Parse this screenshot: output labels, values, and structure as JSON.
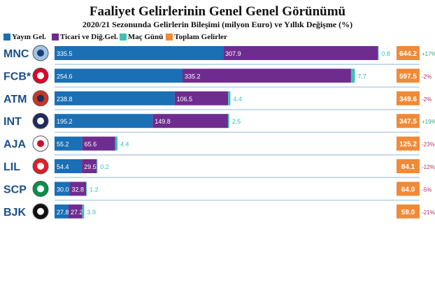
{
  "chart_data": {
    "type": "bar",
    "title": "Faaliyet Gelirlerinin Genel Genel Görünümü",
    "subtitle": "2020/21 Sezonunda Gelirlerin Bileşimi (milyon Euro) ve Yıllık Değişme  (%)",
    "stacked": true,
    "orientation": "horizontal",
    "categories": [
      "MNC",
      "FCB*",
      "ATM",
      "INT",
      "AJA",
      "LIL",
      "SCP",
      "BJK"
    ],
    "series": [
      {
        "name": "Yayın Gel.",
        "color": "#1a6fb5",
        "values": [
          335.5,
          254.6,
          238.8,
          195.2,
          55.2,
          54.4,
          30.0,
          27.8
        ]
      },
      {
        "name": "Ticari ve Diğ.Gel.",
        "color": "#6f2c8f",
        "values": [
          307.9,
          335.2,
          106.5,
          149.8,
          65.6,
          29.5,
          32.8,
          27.2
        ]
      },
      {
        "name": "Maç Günü",
        "color": "#3cc1b4",
        "values": [
          0.8,
          7.7,
          4.4,
          2.5,
          4.4,
          0.2,
          1.2,
          3.9
        ]
      }
    ],
    "totals": {
      "name": "Toplam Gelirler",
      "color": "#f08a36",
      "values": [
        "644.2",
        "597.5",
        "349.6",
        "347.5",
        "125.2",
        "84.1",
        "64.0",
        "59.0"
      ]
    },
    "value_labels": [
      [
        "335.5",
        "307.9",
        "0.8"
      ],
      [
        "254.6",
        "335.2",
        "7.7"
      ],
      [
        "238.8",
        "106.5",
        "4.4"
      ],
      [
        "195.2",
        "149.8",
        "2.5"
      ],
      [
        "55.2",
        "65.6",
        "4.4"
      ],
      [
        "54.4",
        "29.5",
        "0.2"
      ],
      [
        "30.0",
        "32.8",
        "1.2"
      ],
      [
        "27.8",
        "27.2",
        "3.9"
      ]
    ],
    "changes": [
      "+17%",
      "-2%",
      "-2%",
      "+19%",
      "-23%",
      "-12%",
      "-5%",
      "-21%"
    ],
    "legend_position": "top-left"
  }
}
